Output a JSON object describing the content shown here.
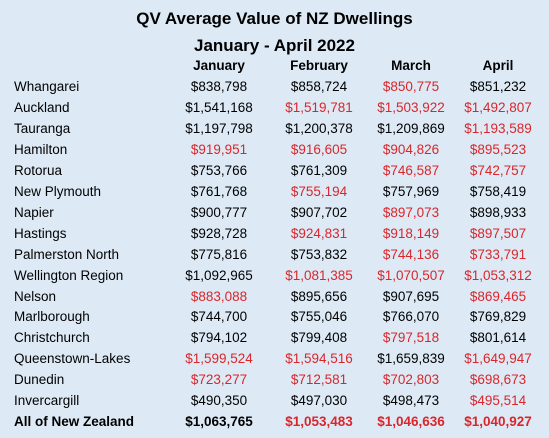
{
  "header": {
    "title": "QV Average Value of NZ Dwellings",
    "subtitle": "January - April 2022"
  },
  "table": {
    "columns": [
      "January",
      "February",
      "March",
      "April"
    ],
    "rows": [
      {
        "region": "Whangarei",
        "values": [
          "$838,798",
          "$858,724",
          "$850,775",
          "$851,232"
        ],
        "colors": [
          "#000000",
          "#000000",
          "#d9262b",
          "#000000"
        ]
      },
      {
        "region": "Auckland",
        "values": [
          "$1,541,168",
          "$1,519,781",
          "$1,503,922",
          "$1,492,807"
        ],
        "colors": [
          "#000000",
          "#d9262b",
          "#d9262b",
          "#d9262b"
        ]
      },
      {
        "region": "Tauranga",
        "values": [
          "$1,197,798",
          "$1,200,378",
          "$1,209,869",
          "$1,193,589"
        ],
        "colors": [
          "#000000",
          "#000000",
          "#000000",
          "#d9262b"
        ]
      },
      {
        "region": "Hamilton",
        "values": [
          "$919,951",
          "$916,605",
          "$904,826",
          "$895,523"
        ],
        "colors": [
          "#d9262b",
          "#d9262b",
          "#d9262b",
          "#d9262b"
        ]
      },
      {
        "region": "Rotorua",
        "values": [
          "$753,766",
          "$761,309",
          "$746,587",
          "$742,757"
        ],
        "colors": [
          "#000000",
          "#000000",
          "#d9262b",
          "#d9262b"
        ]
      },
      {
        "region": "New Plymouth",
        "values": [
          "$761,768",
          "$755,194",
          "$757,969",
          "$758,419"
        ],
        "colors": [
          "#000000",
          "#d9262b",
          "#000000",
          "#000000"
        ]
      },
      {
        "region": "Napier",
        "values": [
          "$900,777",
          "$907,702",
          "$897,073",
          "$898,933"
        ],
        "colors": [
          "#000000",
          "#000000",
          "#d9262b",
          "#000000"
        ]
      },
      {
        "region": "Hastings",
        "values": [
          "$928,728",
          "$924,831",
          "$918,149",
          "$897,507"
        ],
        "colors": [
          "#000000",
          "#d9262b",
          "#d9262b",
          "#d9262b"
        ]
      },
      {
        "region": "Palmerston North",
        "values": [
          "$775,816",
          "$753,832",
          "$744,136",
          "$733,791"
        ],
        "colors": [
          "#000000",
          "#000000",
          "#d9262b",
          "#d9262b"
        ]
      },
      {
        "region": "Wellington Region",
        "values": [
          "$1,092,965",
          "$1,081,385",
          "$1,070,507",
          "$1,053,312"
        ],
        "colors": [
          "#000000",
          "#d9262b",
          "#d9262b",
          "#d9262b"
        ]
      },
      {
        "region": "Nelson",
        "values": [
          "$883,088",
          "$895,656",
          "$907,695",
          "$869,465"
        ],
        "colors": [
          "#d9262b",
          "#000000",
          "#000000",
          "#d9262b"
        ]
      },
      {
        "region": "Marlborough",
        "values": [
          "$744,700",
          "$755,046",
          "$766,070",
          "$769,829"
        ],
        "colors": [
          "#000000",
          "#000000",
          "#000000",
          "#000000"
        ]
      },
      {
        "region": "Christchurch",
        "values": [
          "$794,102",
          "$799,408",
          "$797,518",
          "$801,614"
        ],
        "colors": [
          "#000000",
          "#000000",
          "#d9262b",
          "#000000"
        ]
      },
      {
        "region": "Queenstown-Lakes",
        "values": [
          "$1,599,524",
          "$1,594,516",
          "$1,659,839",
          "$1,649,947"
        ],
        "colors": [
          "#d9262b",
          "#d9262b",
          "#000000",
          "#d9262b"
        ]
      },
      {
        "region": "Dunedin",
        "values": [
          "$723,277",
          "$712,581",
          "$702,803",
          "$698,673"
        ],
        "colors": [
          "#d9262b",
          "#d9262b",
          "#d9262b",
          "#d9262b"
        ]
      },
      {
        "region": "Invercargill",
        "values": [
          "$490,350",
          "$497,030",
          "$498,473",
          "$495,514"
        ],
        "colors": [
          "#000000",
          "#000000",
          "#000000",
          "#d9262b"
        ]
      },
      {
        "region": "All of New Zealand",
        "values": [
          "$1,063,765",
          "$1,053,483",
          "$1,046,636",
          "$1,040,927"
        ],
        "colors": [
          "#000000",
          "#d9262b",
          "#d9262b",
          "#d9262b"
        ],
        "bold": true
      }
    ]
  }
}
